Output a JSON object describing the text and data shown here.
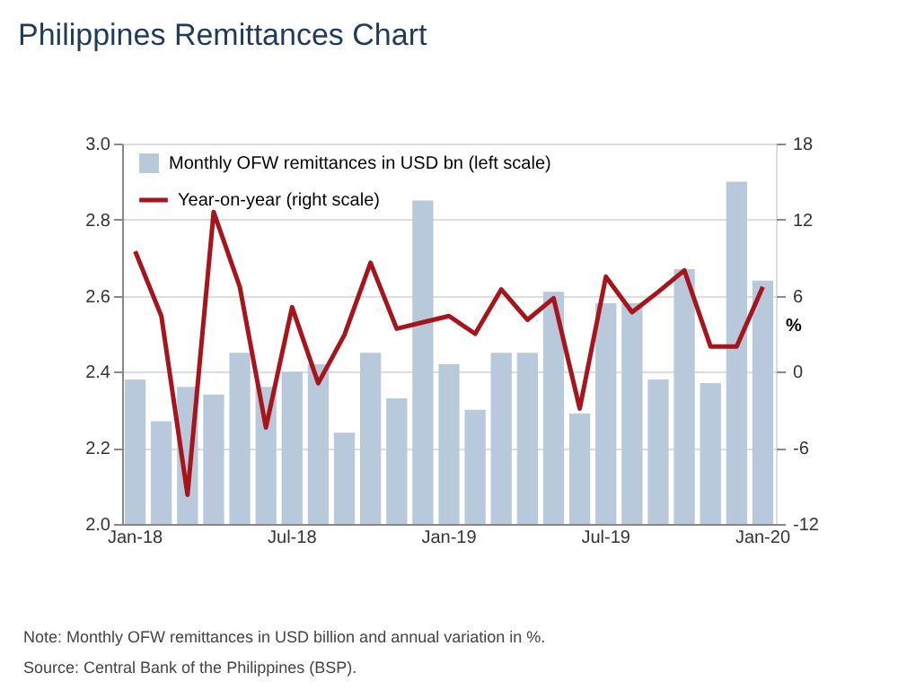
{
  "chart_data": {
    "type": "bar",
    "title": "Philippines Remittances Chart",
    "categories": [
      "Jan-18",
      null,
      null,
      null,
      null,
      null,
      "Jul-18",
      null,
      null,
      null,
      null,
      null,
      "Jan-19",
      null,
      null,
      null,
      null,
      null,
      "Jul-19",
      null,
      null,
      null,
      null,
      null,
      "Jan-20"
    ],
    "series": [
      {
        "name": "Monthly OFW remittances in USD bn (left scale)",
        "color": "#b7c9da",
        "values": [
          2.38,
          2.27,
          2.36,
          2.34,
          2.45,
          2.36,
          2.4,
          2.42,
          2.24,
          2.45,
          2.33,
          2.85,
          2.42,
          2.3,
          2.45,
          2.45,
          2.61,
          2.29,
          2.58,
          2.58,
          2.38,
          2.67,
          2.37,
          2.9,
          2.64
        ]
      },
      {
        "name": "Year-on-year (right scale)",
        "type": "line",
        "axis": "y2",
        "color": "#a8141c",
        "values": [
          9.5,
          4.4,
          -9.7,
          12.6,
          6.7,
          -4.4,
          5.1,
          -0.9,
          2.9,
          8.6,
          3.4,
          3.9,
          4.4,
          3.0,
          6.5,
          4.1,
          5.8,
          -2.9,
          7.5,
          4.7,
          6.3,
          8.0,
          2.0,
          2.0,
          6.7
        ]
      }
    ],
    "ylim": [
      2.0,
      3.0
    ],
    "yticks": [
      {
        "value": 2.0,
        "label": "2.0"
      },
      2.2,
      2.4,
      2.6,
      2.8,
      {
        "value": 3.0,
        "label": "3.0"
      }
    ],
    "y2lim": [
      -12,
      18
    ],
    "y2ticks": [
      -12,
      -6,
      0,
      6,
      12,
      18
    ],
    "y2label": "%",
    "grid": "y",
    "legend": "top left",
    "annotations": [
      "Note: Monthly OFW remittances in USD billion and annual variation in %.",
      "Source: Central Bank of the Philippines (BSP)."
    ]
  }
}
